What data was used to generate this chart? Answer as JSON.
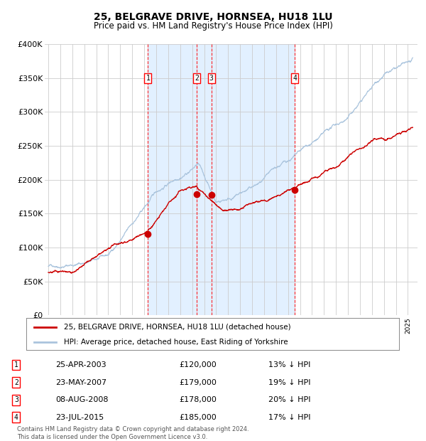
{
  "title1": "25, BELGRAVE DRIVE, HORNSEA, HU18 1LU",
  "title2": "Price paid vs. HM Land Registry's House Price Index (HPI)",
  "ylabel_ticks": [
    "£0",
    "£50K",
    "£100K",
    "£150K",
    "£200K",
    "£250K",
    "£300K",
    "£350K",
    "£400K"
  ],
  "ylim": [
    0,
    400000
  ],
  "xlim_start": 1994.7,
  "xlim_end": 2025.8,
  "hpi_color": "#aac4dd",
  "price_color": "#cc0000",
  "grid_color": "#cccccc",
  "plot_bg": "#ffffff",
  "shade_color": "#ddeeff",
  "transactions": [
    {
      "label": "1",
      "date": 2003.31,
      "price": 120000,
      "pct": "13%",
      "date_str": "25-APR-2003"
    },
    {
      "label": "2",
      "date": 2007.39,
      "price": 179000,
      "pct": "19%",
      "date_str": "23-MAY-2007"
    },
    {
      "label": "3",
      "date": 2008.6,
      "price": 178000,
      "pct": "20%",
      "date_str": "08-AUG-2008"
    },
    {
      "label": "4",
      "date": 2015.56,
      "price": 185000,
      "pct": "17%",
      "date_str": "23-JUL-2015"
    }
  ],
  "legend_line1": "25, BELGRAVE DRIVE, HORNSEA, HU18 1LU (detached house)",
  "legend_line2": "HPI: Average price, detached house, East Riding of Yorkshire",
  "footnote": "Contains HM Land Registry data © Crown copyright and database right 2024.\nThis data is licensed under the Open Government Licence v3.0.",
  "shade_start": 2003.31,
  "shade_end": 2015.56
}
